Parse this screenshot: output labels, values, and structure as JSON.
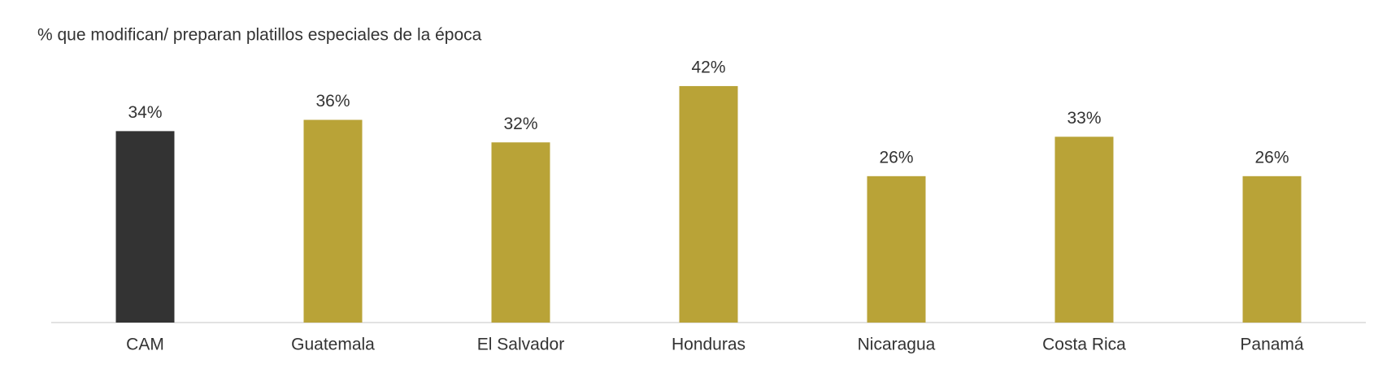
{
  "chart_data": {
    "type": "bar",
    "title": "% que modifican/ preparan platillos especiales de la época",
    "categories": [
      "CAM",
      "Guatemala",
      "El Salvador",
      "Honduras",
      "Nicaragua",
      "Costa Rica",
      "Panamá"
    ],
    "values": [
      34,
      36,
      32,
      42,
      26,
      33,
      26
    ],
    "value_labels": [
      "34%",
      "36%",
      "32%",
      "42%",
      "26%",
      "33%",
      "26%"
    ],
    "colors": [
      "#333333",
      "#b9a337",
      "#b9a337",
      "#b9a337",
      "#b9a337",
      "#b9a337",
      "#b9a337"
    ]
  }
}
